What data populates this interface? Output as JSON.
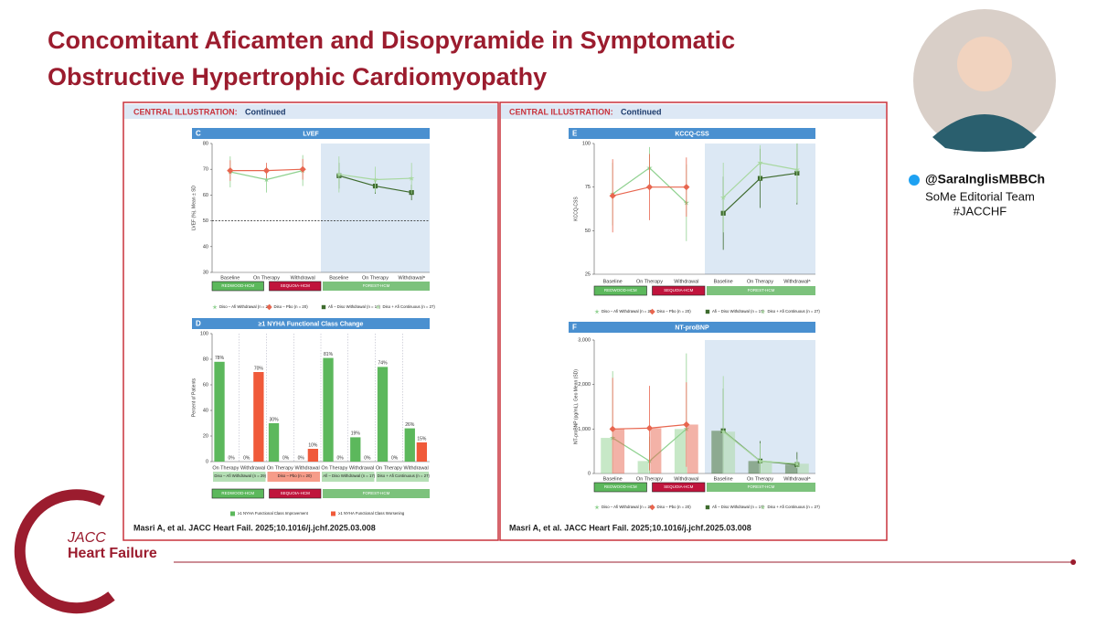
{
  "slide": {
    "title_lines": [
      "Concomitant Aficamten and Disopyramide in Symptomatic",
      "Obstructive Hypertrophic Cardiomyopathy"
    ],
    "handle": "@SaraInglisMBBCh",
    "team": "SoMe Editorial Team",
    "hashtag": "#JACCHF",
    "logo": [
      "JACC",
      "Heart Failure"
    ],
    "illustration_heading": "CENTRAL ILLUSTRATION:",
    "illustration_continued": "Continued",
    "citation": "Masri A, et al. JACC Heart Fail. 2025;10.1016/j.jchf.2025.03.008"
  },
  "chart_data": [
    {
      "type": "line",
      "label": "C",
      "title": "LVEF",
      "y_label": "LVEF (%), Mean ± SD",
      "categories": [
        "Baseline",
        "On Therapy",
        "Withdrawal",
        "Baseline",
        "On Therapy",
        "Withdrawalᵃ"
      ],
      "ylim": [
        30,
        80
      ],
      "yticks": [
        30,
        40,
        50,
        60,
        70,
        80
      ],
      "reference_line": 50,
      "studies": [
        {
          "name": "REDWOOD-HCM",
          "color": "#5cb85c"
        },
        {
          "name": "SEQUOIA-HCM",
          "color": "#c0143c"
        },
        {
          "name": "FOREST-HCM",
          "color": "#7cc27c"
        }
      ],
      "series": [
        {
          "name": "Diso – Afi Withdrawal (n = 29)",
          "color": "#8fd18f",
          "marker": "star",
          "values": [
            69,
            66,
            69.5,
            null,
            null,
            null
          ],
          "errors": [
            6,
            5,
            6,
            null,
            null,
            null
          ]
        },
        {
          "name": "Diso – Pbo (n = 20)",
          "color": "#e8664f",
          "marker": "diamond",
          "values": [
            69.5,
            69.5,
            70,
            null,
            null,
            null
          ],
          "errors": [
            4,
            3,
            4,
            null,
            null,
            null
          ]
        },
        {
          "name": "Afi – Diso Withdrawal (n = 17)",
          "color": "#3e6b2e",
          "marker": "square",
          "values": [
            null,
            null,
            null,
            67.5,
            63.5,
            61
          ],
          "errors": [
            null,
            null,
            null,
            5,
            3,
            3
          ]
        },
        {
          "name": "Diso + Afi Continuous (n = 27)",
          "color": "#a8d8a0",
          "marker": "star",
          "values": [
            null,
            null,
            null,
            68,
            66,
            66.5
          ],
          "errors": [
            null,
            null,
            null,
            7,
            5,
            6
          ]
        }
      ]
    },
    {
      "type": "bar",
      "label": "D",
      "title": "≥1 NYHA Functional Class Change",
      "y_label": "Percent of Patients",
      "categories": [
        "On Therapy",
        "Withdrawal",
        "On Therapy",
        "Withdrawal",
        "On Therapy",
        "Withdrawal",
        "On Therapy",
        "Withdrawal"
      ],
      "groups": [
        "Diso – Afi Withdrawal (n = 29)",
        "Diso – Pbo (n = 20)",
        "Afi – Diso Withdrawal (n = 17)",
        "Diso + Afi Continuous (n = 27)"
      ],
      "ylim": [
        0,
        100
      ],
      "yticks": [
        0,
        20,
        40,
        60,
        80,
        100
      ],
      "studies": [
        {
          "name": "REDWOOD-HCM",
          "color": "#5cb85c"
        },
        {
          "name": "SEQUOIA-HCM",
          "color": "#c0143c"
        },
        {
          "name": "FOREST-HCM",
          "color": "#7cc27c"
        }
      ],
      "series": [
        {
          "name": "≥1 NYHA Functional Class Improvement",
          "color": "#5cb85c",
          "values": [
            78,
            0,
            30,
            0,
            81,
            19,
            74,
            26
          ],
          "value_labels": [
            "78%",
            "0%",
            "30%",
            "0%",
            "81%",
            "19%",
            "74%",
            "26%"
          ]
        },
        {
          "name": "≥1 NYHA Functional Class Worsening",
          "color": "#f05a3a",
          "values": [
            0,
            70,
            0,
            10,
            0,
            0,
            0,
            15
          ],
          "value_labels": [
            "0%",
            "70%",
            "0%",
            "10%",
            "0%",
            "0%",
            "0%",
            "15%"
          ]
        }
      ]
    },
    {
      "type": "line",
      "label": "E",
      "title": "KCCQ-CSS",
      "y_label": "KCCQ-CSS",
      "categories": [
        "Baseline",
        "On Therapy",
        "Withdrawal",
        "Baseline",
        "On Therapy",
        "Withdrawalᵃ"
      ],
      "ylim": [
        25,
        100
      ],
      "yticks": [
        25,
        50,
        75,
        100
      ],
      "studies": [
        {
          "name": "REDWOOD-HCM",
          "color": "#5cb85c"
        },
        {
          "name": "SEQUOIA-HCM",
          "color": "#c0143c"
        },
        {
          "name": "FOREST-HCM",
          "color": "#7cc27c"
        }
      ],
      "series": [
        {
          "name": "Diso – Afi Withdrawal (n = 29)",
          "color": "#8fd18f",
          "marker": "star",
          "values": [
            71,
            86,
            66,
            null,
            null,
            null
          ],
          "errors": [
            18,
            12,
            22,
            null,
            null,
            null
          ]
        },
        {
          "name": "Diso – Pbo (n = 20)",
          "color": "#e8664f",
          "marker": "diamond",
          "values": [
            70,
            75,
            75,
            null,
            null,
            null
          ],
          "errors": [
            21,
            19,
            17,
            null,
            null,
            null
          ]
        },
        {
          "name": "Afi – Diso Withdrawal (n = 17)",
          "color": "#3e6b2e",
          "marker": "square",
          "values": [
            null,
            null,
            null,
            60,
            80,
            83
          ],
          "errors": [
            null,
            null,
            null,
            21,
            17,
            18
          ]
        },
        {
          "name": "Diso + Afi Continuous (n = 27)",
          "color": "#a8d8a0",
          "marker": "star",
          "values": [
            null,
            null,
            null,
            69,
            89,
            85
          ],
          "errors": [
            null,
            null,
            null,
            20,
            10,
            19
          ]
        }
      ]
    },
    {
      "type": "combo",
      "label": "F",
      "title": "NT-proBNP",
      "y_label": "NT-proBNP (pg/mL), Geo Mean (SD)",
      "categories": [
        "Baseline",
        "On Therapy",
        "Withdrawal",
        "Baseline",
        "On Therapy",
        "Withdrawalᵃ"
      ],
      "ylim": [
        0,
        3000
      ],
      "yticks": [
        0,
        {
          "value": 1000,
          "label": "1,000"
        },
        {
          "value": 2000,
          "label": "2,000"
        },
        {
          "value": 3000,
          "label": "3,000"
        }
      ],
      "studies": [
        {
          "name": "REDWOOD-HCM",
          "color": "#5cb85c"
        },
        {
          "name": "SEQUOIA-HCM",
          "color": "#c0143c"
        },
        {
          "name": "FOREST-HCM",
          "color": "#7cc27c"
        }
      ],
      "series": [
        {
          "name": "Diso – Afi Withdrawal (n = 29)",
          "color": "#8fd18f",
          "marker": "star",
          "values": [
            800,
            280,
            1000,
            null,
            null,
            null
          ],
          "errors": [
            1500,
            550,
            1700,
            null,
            null,
            null
          ]
        },
        {
          "name": "Diso – Pbo (n = 20)",
          "color": "#e8664f",
          "marker": "diamond",
          "values": [
            1000,
            1020,
            1100,
            null,
            null,
            null
          ],
          "errors": [
            1150,
            950,
            950,
            null,
            null,
            null
          ]
        },
        {
          "name": "Afi – Diso Withdrawal (n = 17)",
          "color": "#3e6b2e",
          "marker": "square",
          "values": [
            null,
            null,
            null,
            960,
            280,
            200
          ],
          "errors": [
            null,
            null,
            null,
            950,
            450,
            280
          ]
        },
        {
          "name": "Diso + Afi Continuous (n = 27)",
          "color": "#a8d8a0",
          "marker": "star",
          "values": [
            null,
            null,
            null,
            940,
            280,
            220
          ],
          "errors": [
            null,
            null,
            null,
            1250,
            400,
            100
          ]
        }
      ]
    }
  ]
}
